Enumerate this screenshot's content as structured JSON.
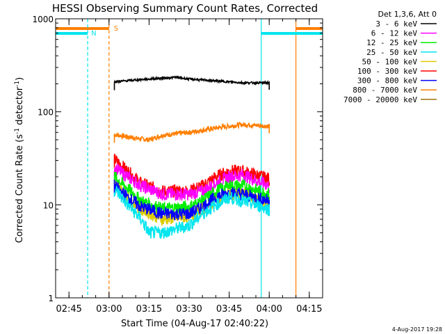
{
  "chart_data": {
    "type": "line",
    "title": "HESSI Observing Summary Count Rates, Corrected",
    "xlabel": "Start Time (04-Aug-17 02:40:22)",
    "ylabel_parts": {
      "main": "Corrected Count Rate (s",
      "sup1": "-1",
      "mid": " detector",
      "sup2": "-1",
      "end": ")"
    },
    "y_scale": "log",
    "ylim": [
      1,
      1000
    ],
    "xlim_minutes": [
      "02:40",
      "04:20"
    ],
    "x_ticks": [
      {
        "label": "02:45",
        "t": "02:45"
      },
      {
        "label": "03:00",
        "t": "03:00"
      },
      {
        "label": "03:15",
        "t": "03:15"
      },
      {
        "label": "03:30",
        "t": "03:30"
      },
      {
        "label": "03:45",
        "t": "03:45"
      },
      {
        "label": "04:00",
        "t": "04:00"
      },
      {
        "label": "04:15",
        "t": "04:15"
      }
    ],
    "y_ticks": [
      {
        "label": "1",
        "v": 1
      },
      {
        "label": "10",
        "v": 10
      },
      {
        "label": "100",
        "v": 100
      },
      {
        "label": "1000",
        "v": 1000
      }
    ],
    "legend": {
      "placement": "top-right, outside plot",
      "header": "Det 1,3,6, Att 0"
    },
    "markers": {
      "night": {
        "label": "N",
        "color": "#00e5ee",
        "intervals": [
          [
            "02:40",
            "02:52"
          ],
          [
            "03:57",
            "04:20"
          ]
        ]
      },
      "saa": {
        "label": "S",
        "color": "#ff7f00",
        "intervals": [
          [
            "02:40",
            "03:00"
          ],
          [
            "04:10",
            "04:20"
          ]
        ]
      }
    },
    "series": [
      {
        "name": "3 - 6 keV",
        "color": "#000000",
        "x": [
          "03:02",
          "03:10",
          "03:20",
          "03:25",
          "03:30",
          "03:40",
          "03:50",
          "04:00"
        ],
        "y": [
          210,
          220,
          230,
          235,
          225,
          215,
          205,
          205
        ]
      },
      {
        "name": "6 - 12 keV",
        "color": "#ff00ff",
        "x": [
          "03:02",
          "03:07",
          "03:12",
          "03:20",
          "03:30",
          "03:35",
          "03:40",
          "03:45",
          "03:50",
          "04:00"
        ],
        "y": [
          25,
          20,
          16,
          13,
          13,
          14,
          17,
          20,
          21,
          16
        ]
      },
      {
        "name": "12 - 25 keV",
        "color": "#00ee00",
        "x": [
          "03:02",
          "03:07",
          "03:12",
          "03:20",
          "03:30",
          "03:35",
          "03:40",
          "03:45",
          "03:50",
          "04:00"
        ],
        "y": [
          20,
          15,
          11,
          9,
          9.5,
          11,
          14,
          16,
          16,
          13
        ]
      },
      {
        "name": "25 - 50 keV",
        "color": "#00e5ee",
        "x": [
          "03:02",
          "03:07",
          "03:12",
          "03:15",
          "03:20",
          "03:25",
          "03:30",
          "03:35",
          "03:40",
          "03:45",
          "03:50",
          "04:00"
        ],
        "y": [
          15,
          10,
          7,
          5,
          5,
          5.5,
          6,
          8,
          10,
          12,
          11,
          9
        ]
      },
      {
        "name": "50 - 100 keV",
        "color": "#ddcc00",
        "x": [
          "03:02",
          "03:07",
          "03:12",
          "03:20",
          "03:30",
          "03:35",
          "03:40",
          "03:45",
          "03:50",
          "04:00"
        ],
        "y": [
          17,
          12,
          9,
          7,
          7.5,
          9,
          11,
          13,
          13,
          10
        ]
      },
      {
        "name": "100 - 300 keV",
        "color": "#ff0000",
        "x": [
          "03:02",
          "03:07",
          "03:12",
          "03:20",
          "03:30",
          "03:35",
          "03:40",
          "03:45",
          "03:50",
          "04:00"
        ],
        "y": [
          31,
          23,
          17,
          14,
          14,
          16,
          20,
          23,
          23,
          19
        ]
      },
      {
        "name": "300 - 800 keV",
        "color": "#0000ff",
        "x": [
          "03:02",
          "03:07",
          "03:12",
          "03:20",
          "03:30",
          "03:35",
          "03:40",
          "03:45",
          "03:50",
          "04:00"
        ],
        "y": [
          16,
          12,
          9.5,
          8,
          8,
          9.5,
          12,
          13.5,
          13,
          11
        ]
      },
      {
        "name": "800 - 7000 keV",
        "color": "#ff7f00",
        "x": [
          "03:02",
          "03:10",
          "03:15",
          "03:20",
          "03:30",
          "03:40",
          "03:50",
          "04:00"
        ],
        "y": [
          57,
          52,
          50,
          56,
          60,
          67,
          73,
          70
        ]
      },
      {
        "name": "7000 - 20000 keV",
        "color": "#a0720a",
        "x": [],
        "y": []
      }
    ]
  },
  "footer": {
    "timestamp": "4-Aug-2017 19:28"
  }
}
